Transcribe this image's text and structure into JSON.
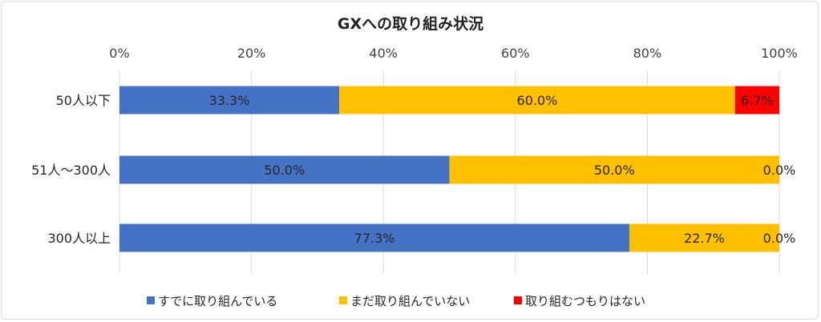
{
  "chart_data": {
    "type": "bar",
    "orientation": "horizontal",
    "stacked": true,
    "title": "GXへの取り組み状況",
    "categories": [
      "50人以下",
      "51人～300人",
      "300人以上"
    ],
    "series": [
      {
        "name": "すでに取り組んでいる",
        "color": "#4472C4",
        "values": [
          33.3,
          50.0,
          77.3
        ],
        "labels": [
          "33.3%",
          "50.0%",
          "77.3%"
        ]
      },
      {
        "name": "まだ取り組んでいない",
        "color": "#FFC000",
        "values": [
          60.0,
          50.0,
          22.7
        ],
        "labels": [
          "60.0%",
          "50.0%",
          "22.7%"
        ]
      },
      {
        "name": "取り組むつもりはない",
        "color": "#FF0000",
        "values": [
          6.7,
          0.0,
          0.0
        ],
        "labels": [
          "6.7%",
          "0.0%",
          "0.0%"
        ]
      }
    ],
    "x_ticks": [
      "0%",
      "20%",
      "40%",
      "60%",
      "80%",
      "100%"
    ],
    "xlim": [
      0,
      100
    ],
    "grid": true,
    "legend_position": "bottom"
  }
}
